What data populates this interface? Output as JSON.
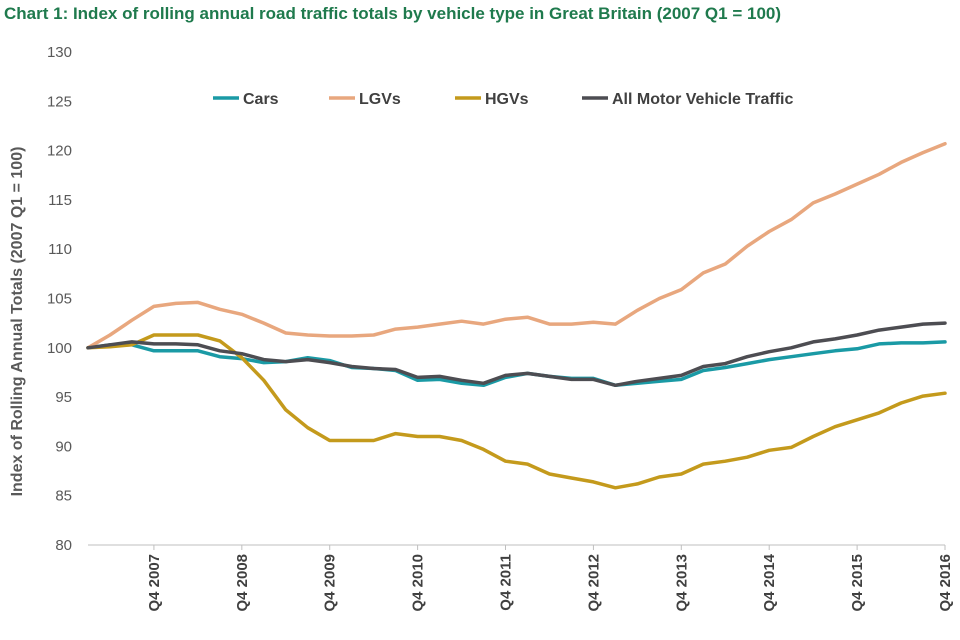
{
  "chart_data": {
    "type": "line",
    "title": "Chart 1: Index of rolling annual road traffic totals by vehicle type in Great Britain (2007 Q1 = 100)",
    "xlabel": "",
    "ylabel": "Index of Rolling Annual Totals (2007 Q1 = 100)",
    "ylim": [
      80,
      130
    ],
    "yticks": [
      80,
      85,
      90,
      95,
      100,
      105,
      110,
      115,
      120,
      125,
      130
    ],
    "x": [
      "Q1 2007",
      "Q2 2007",
      "Q3 2007",
      "Q4 2007",
      "Q1 2008",
      "Q2 2008",
      "Q3 2008",
      "Q4 2008",
      "Q1 2009",
      "Q2 2009",
      "Q3 2009",
      "Q4 2009",
      "Q1 2010",
      "Q2 2010",
      "Q3 2010",
      "Q4 2010",
      "Q1 2011",
      "Q2 2011",
      "Q3 2011",
      "Q4 2011",
      "Q1 2012",
      "Q2 2012",
      "Q3 2012",
      "Q4 2012",
      "Q1 2013",
      "Q2 2013",
      "Q3 2013",
      "Q4 2013",
      "Q1 2014",
      "Q2 2014",
      "Q3 2014",
      "Q4 2014",
      "Q1 2015",
      "Q2 2015",
      "Q3 2015",
      "Q4 2015",
      "Q1 2016",
      "Q2 2016",
      "Q3 2016",
      "Q4 2016"
    ],
    "xtick_labels": [
      "Q4 2007",
      "Q4 2008",
      "Q4 2009",
      "Q4 2010",
      "Q4 2011",
      "Q4 2012",
      "Q4 2013",
      "Q4 2014",
      "Q4 2015",
      "Q4 2016"
    ],
    "xtick_positions": [
      3,
      7,
      11,
      15,
      19,
      23,
      27,
      31,
      35,
      39
    ],
    "legend_position": "top",
    "grid": false,
    "series": [
      {
        "name": "Cars",
        "color": "#1a9aa5",
        "values": [
          100,
          100.3,
          100.3,
          99.7,
          99.7,
          99.7,
          99.1,
          98.9,
          98.5,
          98.6,
          99.0,
          98.7,
          98.0,
          97.9,
          97.7,
          96.7,
          96.8,
          96.4,
          96.2,
          97.0,
          97.4,
          97.1,
          96.9,
          96.9,
          96.2,
          96.4,
          96.6,
          96.8,
          97.7,
          98.0,
          98.4,
          98.8,
          99.1,
          99.4,
          99.7,
          99.9,
          100.4,
          100.5,
          100.5,
          100.6
        ]
      },
      {
        "name": "LGVs",
        "color": "#e8a77e",
        "values": [
          100,
          101.3,
          102.8,
          104.2,
          104.5,
          104.6,
          103.9,
          103.4,
          102.5,
          101.5,
          101.3,
          101.2,
          101.2,
          101.3,
          101.9,
          102.1,
          102.4,
          102.7,
          102.4,
          102.9,
          103.1,
          102.4,
          102.4,
          102.6,
          102.4,
          103.8,
          105.0,
          105.9,
          107.6,
          108.5,
          110.3,
          111.8,
          113.0,
          114.7,
          115.6,
          116.6,
          117.6,
          118.8,
          119.8,
          120.7
        ]
      },
      {
        "name": "HGVs",
        "color": "#c49a1c",
        "values": [
          100,
          100.1,
          100.3,
          101.3,
          101.3,
          101.3,
          100.7,
          99.0,
          96.7,
          93.7,
          91.9,
          90.6,
          90.6,
          90.6,
          91.3,
          91.0,
          91.0,
          90.6,
          89.7,
          88.5,
          88.2,
          87.2,
          86.8,
          86.4,
          85.8,
          86.2,
          86.9,
          87.2,
          88.2,
          88.5,
          88.9,
          89.6,
          89.9,
          91.0,
          92.0,
          92.7,
          93.4,
          94.4,
          95.1,
          95.4
        ]
      },
      {
        "name": "All Motor Vehicle Traffic",
        "color": "#4d4d52",
        "values": [
          100,
          100.3,
          100.6,
          100.4,
          100.4,
          100.3,
          99.7,
          99.4,
          98.8,
          98.6,
          98.8,
          98.5,
          98.1,
          97.9,
          97.8,
          97.0,
          97.1,
          96.7,
          96.4,
          97.2,
          97.4,
          97.1,
          96.8,
          96.8,
          96.2,
          96.6,
          96.9,
          97.2,
          98.1,
          98.4,
          99.1,
          99.6,
          100.0,
          100.6,
          100.9,
          101.3,
          101.8,
          102.1,
          102.4,
          102.5
        ]
      }
    ]
  }
}
